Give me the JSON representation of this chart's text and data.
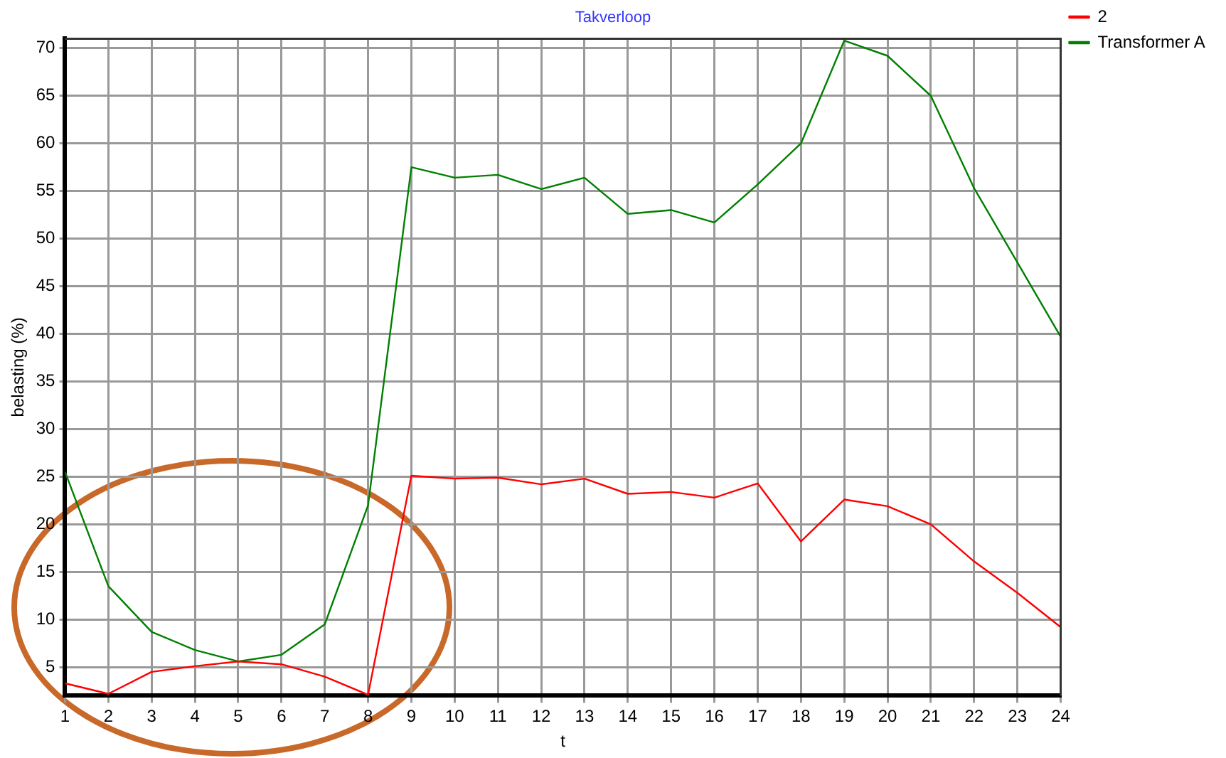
{
  "chart_data": {
    "type": "line",
    "title": "Takverloop",
    "xlabel": "t",
    "ylabel": "belasting (%)",
    "x": [
      1,
      2,
      3,
      4,
      5,
      6,
      7,
      8,
      9,
      10,
      11,
      12,
      13,
      14,
      15,
      16,
      17,
      18,
      19,
      20,
      21,
      22,
      23,
      24
    ],
    "series": [
      {
        "name": "2",
        "color": "#ff0000",
        "values": [
          3.3,
          2.2,
          4.5,
          5.1,
          5.6,
          5.3,
          4.0,
          2.1,
          25.1,
          24.8,
          24.9,
          24.2,
          24.8,
          23.2,
          23.4,
          22.8,
          24.3,
          18.2,
          22.6,
          21.9,
          20.0,
          16.1,
          12.8,
          9.2
        ]
      },
      {
        "name": "Transformer A",
        "color": "#008000",
        "values": [
          25.5,
          13.5,
          8.7,
          6.8,
          5.6,
          6.3,
          9.5,
          22.0,
          57.5,
          56.4,
          56.7,
          55.2,
          56.4,
          52.6,
          53.0,
          51.7,
          55.7,
          60.0,
          70.8,
          69.2,
          65.0,
          55.3,
          47.5,
          39.7
        ]
      }
    ],
    "xlim": [
      1,
      24
    ],
    "xticks": [
      1,
      2,
      3,
      4,
      5,
      6,
      7,
      8,
      9,
      10,
      11,
      12,
      13,
      14,
      15,
      16,
      17,
      18,
      19,
      20,
      21,
      22,
      23,
      24
    ],
    "ylim": [
      2,
      71
    ],
    "yticks": [
      5,
      10,
      15,
      20,
      25,
      30,
      35,
      40,
      45,
      50,
      55,
      60,
      65,
      70
    ],
    "grid": true,
    "legend": "top right",
    "marker": "none",
    "line_style": "solid"
  }
}
